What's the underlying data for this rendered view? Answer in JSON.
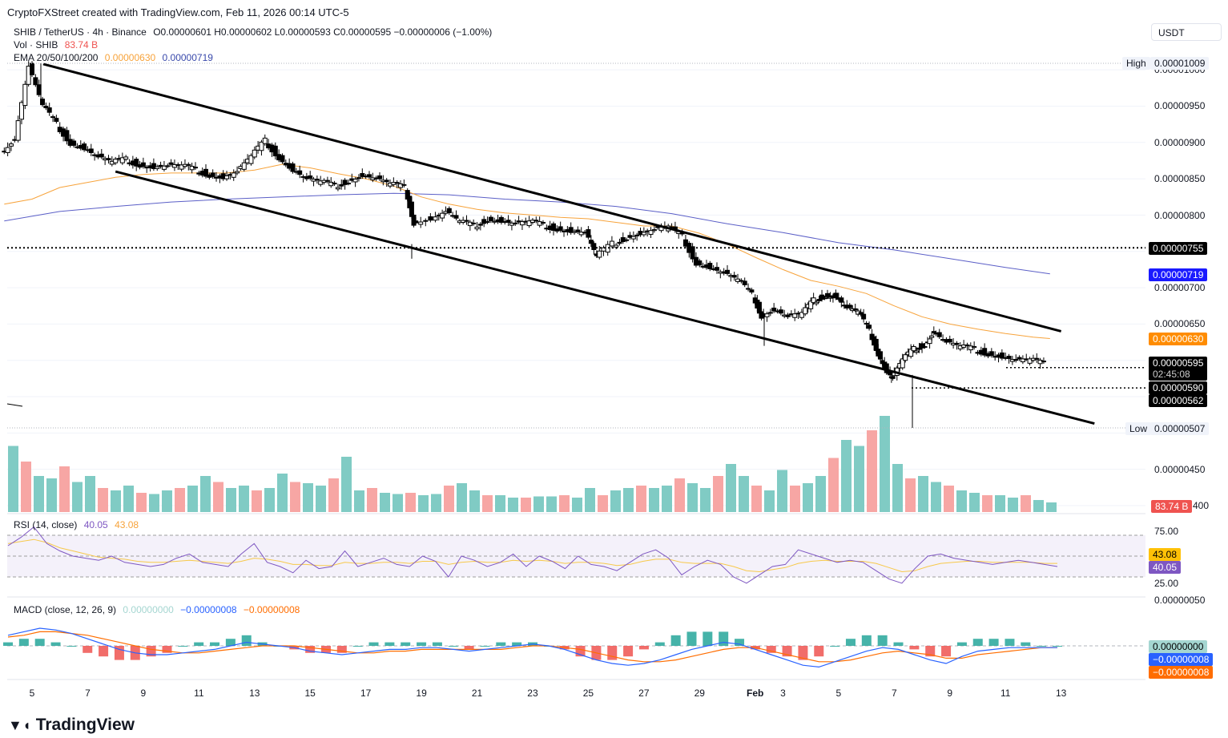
{
  "header": {
    "credit": "CryptoFXStreet created with TradingView.com, Feb 11, 2026 00:14 UTC-5"
  },
  "currency_button": "USDT",
  "legend": {
    "symbol": "SHIB / TetherUS · 4h · Binance",
    "ohlc": "O0.00000601 H0.00000602 L0.00000593 C0.00000595 −0.00000006 (−1.00%)",
    "vol_label": "Vol · SHIB",
    "vol_value": "83.74 B",
    "ema_label": "EMA 20/50/100/200",
    "ema_val1": "0.00000630",
    "ema_val2": "0.00000719"
  },
  "price_tags": {
    "high_label": "High",
    "high_value": "0.00001009",
    "low_label": "Low",
    "low_value": "0.00000507",
    "level_755": "0.00000755",
    "ema200": "0.00000719",
    "ema50": "0.00000630",
    "close": "0.00000595",
    "countdown": "02:45:08",
    "level_590": "0.00000590",
    "level_562": "0.00000562",
    "volume": "83.74 B"
  },
  "rsi": {
    "label": "RSI (14, close)",
    "value": "40.05",
    "ma": "43.08"
  },
  "macd": {
    "label": "MACD (close, 12, 26, 9)",
    "hist": "0.00000000",
    "macd": "−0.00000008",
    "signal": "−0.00000008"
  },
  "colors": {
    "up": "#26a69a",
    "down": "#ef5350",
    "ema50": "#f7a33b",
    "ema200": "#5b5fc7",
    "rsi": "#7e57c2",
    "macd": "#2962ff",
    "signal": "#ff6d00"
  },
  "logo": "TradingView",
  "chart_data": {
    "type": "candlestick",
    "x_ticks": [
      "5",
      "7",
      "9",
      "11",
      "13",
      "15",
      "17",
      "19",
      "21",
      "23",
      "25",
      "27",
      "29",
      "Feb",
      "3",
      "5",
      "7",
      "9",
      "11",
      "13"
    ],
    "y_ticks": [
      "0.00001000",
      "0.00000950",
      "0.00000900",
      "0.00000850",
      "0.00000800",
      "0.00000700",
      "0.00000650",
      "0.00000450",
      "400"
    ],
    "rsi_ticks": [
      "75.00",
      "25.00"
    ],
    "macd_ticks": [
      "0.00000050"
    ],
    "price_path": [
      [
        4.0,
        885
      ],
      [
        4.5,
        905
      ],
      [
        5.0,
        1005
      ],
      [
        5.5,
        950
      ],
      [
        6.0,
        925
      ],
      [
        6.5,
        900
      ],
      [
        7.0,
        892
      ],
      [
        7.5,
        880
      ],
      [
        8.0,
        872
      ],
      [
        8.5,
        876
      ],
      [
        9.0,
        870
      ],
      [
        9.5,
        866
      ],
      [
        10.0,
        868
      ],
      [
        10.5,
        867
      ],
      [
        11.0,
        862
      ],
      [
        11.5,
        856
      ],
      [
        12.0,
        852
      ],
      [
        12.5,
        860
      ],
      [
        13.0,
        880
      ],
      [
        13.5,
        902
      ],
      [
        14.0,
        880
      ],
      [
        14.5,
        862
      ],
      [
        15.0,
        850
      ],
      [
        15.5,
        845
      ],
      [
        16.0,
        840
      ],
      [
        16.5,
        848
      ],
      [
        17.0,
        855
      ],
      [
        17.5,
        850
      ],
      [
        18.0,
        842
      ],
      [
        18.5,
        838
      ],
      [
        18.8,
        790
      ],
      [
        19.5,
        795
      ],
      [
        20.0,
        805
      ],
      [
        20.5,
        790
      ],
      [
        21.0,
        785
      ],
      [
        21.5,
        795
      ],
      [
        22.0,
        792
      ],
      [
        22.5,
        788
      ],
      [
        23.0,
        790
      ],
      [
        23.5,
        786
      ],
      [
        24.0,
        782
      ],
      [
        24.5,
        778
      ],
      [
        25.0,
        776
      ],
      [
        25.4,
        742
      ],
      [
        26.0,
        760
      ],
      [
        26.5,
        770
      ],
      [
        27.0,
        775
      ],
      [
        27.5,
        780
      ],
      [
        28.0,
        783
      ],
      [
        28.5,
        770
      ],
      [
        29.0,
        735
      ],
      [
        29.5,
        728
      ],
      [
        30.0,
        720
      ],
      [
        30.5,
        710
      ],
      [
        31.0,
        690
      ],
      [
        31.3,
        662
      ],
      [
        31.8,
        670
      ],
      [
        32.3,
        660
      ],
      [
        32.8,
        664
      ],
      [
        33.2,
        682
      ],
      [
        33.6,
        690
      ],
      [
        34.0,
        688
      ],
      [
        34.4,
        672
      ],
      [
        34.8,
        666
      ],
      [
        35.2,
        640
      ],
      [
        35.5,
        610
      ],
      [
        35.8,
        585
      ],
      [
        36.0,
        575
      ],
      [
        36.4,
        600
      ],
      [
        36.8,
        615
      ],
      [
        37.2,
        623
      ],
      [
        37.5,
        640
      ],
      [
        38.0,
        625
      ],
      [
        38.5,
        618
      ],
      [
        39.0,
        615
      ],
      [
        39.5,
        610
      ],
      [
        40.0,
        605
      ],
      [
        40.5,
        600
      ],
      [
        41.0,
        600
      ],
      [
        41.5,
        595
      ]
    ],
    "ema50": [
      [
        4.0,
        815
      ],
      [
        5.0,
        822
      ],
      [
        6.0,
        838
      ],
      [
        7.0,
        845
      ],
      [
        8.0,
        852
      ],
      [
        9.0,
        856
      ],
      [
        10.0,
        858
      ],
      [
        11.0,
        858
      ],
      [
        12.0,
        858
      ],
      [
        13.0,
        862
      ],
      [
        14.0,
        870
      ],
      [
        15.0,
        865
      ],
      [
        16.0,
        857
      ],
      [
        17.0,
        850
      ],
      [
        18.0,
        840
      ],
      [
        19.0,
        825
      ],
      [
        20.0,
        815
      ],
      [
        21.0,
        808
      ],
      [
        22.0,
        803
      ],
      [
        23.0,
        800
      ],
      [
        24.0,
        797
      ],
      [
        25.0,
        795
      ],
      [
        26.0,
        790
      ],
      [
        27.0,
        785
      ],
      [
        28.0,
        785
      ],
      [
        29.0,
        775
      ],
      [
        30.0,
        760
      ],
      [
        31.0,
        742
      ],
      [
        32.0,
        725
      ],
      [
        33.0,
        710
      ],
      [
        34.0,
        702
      ],
      [
        35.0,
        692
      ],
      [
        36.0,
        675
      ],
      [
        37.0,
        660
      ],
      [
        38.0,
        650
      ],
      [
        39.0,
        643
      ],
      [
        40.0,
        637
      ],
      [
        41.0,
        632
      ],
      [
        41.6,
        630
      ]
    ],
    "ema200": [
      [
        4.0,
        792
      ],
      [
        6.0,
        805
      ],
      [
        8.0,
        812
      ],
      [
        10.0,
        818
      ],
      [
        12.0,
        822
      ],
      [
        14.0,
        825
      ],
      [
        16.0,
        828
      ],
      [
        18.0,
        830
      ],
      [
        20.0,
        828
      ],
      [
        22.0,
        822
      ],
      [
        24.0,
        818
      ],
      [
        26.0,
        812
      ],
      [
        28.0,
        802
      ],
      [
        30.0,
        788
      ],
      [
        32.0,
        776
      ],
      [
        34.0,
        762
      ],
      [
        36.0,
        752
      ],
      [
        38.0,
        740
      ],
      [
        40.0,
        728
      ],
      [
        41.6,
        719
      ]
    ],
    "channel_upper": [
      [
        5.4,
        1008
      ],
      [
        42.0,
        640
      ]
    ],
    "channel_lower": [
      [
        8.0,
        860
      ],
      [
        43.2,
        513
      ]
    ],
    "dotted_levels": [
      755,
      590,
      562
    ],
    "high": 1009,
    "low": 507,
    "volume_bars": [
      0.55,
      0.42,
      0.3,
      0.28,
      0.38,
      0.25,
      0.3,
      0.2,
      0.18,
      0.22,
      0.16,
      0.15,
      0.18,
      0.2,
      0.22,
      0.3,
      0.25,
      0.2,
      0.22,
      0.18,
      0.2,
      0.32,
      0.25,
      0.24,
      0.22,
      0.28,
      0.46,
      0.18,
      0.2,
      0.16,
      0.15,
      0.16,
      0.14,
      0.15,
      0.22,
      0.24,
      0.18,
      0.14,
      0.14,
      0.12,
      0.12,
      0.13,
      0.13,
      0.14,
      0.12,
      0.2,
      0.14,
      0.18,
      0.2,
      0.22,
      0.2,
      0.22,
      0.28,
      0.24,
      0.2,
      0.3,
      0.4,
      0.3,
      0.22,
      0.18,
      0.35,
      0.22,
      0.24,
      0.3,
      0.45,
      0.6,
      0.55,
      0.68,
      0.8,
      0.4,
      0.28,
      0.3,
      0.25,
      0.22,
      0.18,
      0.16,
      0.14,
      0.14,
      0.12,
      0.14,
      0.1,
      0.08
    ],
    "rsi": [
      60,
      68,
      78,
      62,
      55,
      50,
      48,
      46,
      50,
      44,
      42,
      40,
      42,
      48,
      52,
      44,
      42,
      40,
      52,
      62,
      44,
      40,
      34,
      46,
      38,
      40,
      55,
      40,
      44,
      48,
      42,
      40,
      50,
      45,
      30,
      50,
      46,
      40,
      44,
      52,
      40,
      50,
      45,
      38,
      50,
      42,
      40,
      36,
      44,
      52,
      56,
      48,
      32,
      40,
      46,
      42,
      30,
      24,
      32,
      40,
      42,
      56,
      52,
      48,
      44,
      46,
      44,
      36,
      28,
      24,
      38,
      50,
      52,
      48,
      46,
      44,
      42,
      44,
      46,
      44,
      42,
      40
    ],
    "rsi_ma": [
      62,
      64,
      66,
      63,
      58,
      55,
      52,
      49,
      48,
      47,
      45,
      44,
      44,
      45,
      46,
      45,
      44,
      43,
      45,
      48,
      47,
      45,
      42,
      42,
      41,
      41,
      44,
      43,
      43,
      44,
      44,
      43,
      45,
      45,
      42,
      44,
      45,
      44,
      44,
      46,
      45,
      46,
      45,
      43,
      44,
      44,
      43,
      41,
      42,
      45,
      47,
      47,
      44,
      43,
      43,
      43,
      40,
      36,
      35,
      37,
      39,
      43,
      45,
      46,
      45,
      45,
      45,
      43,
      39,
      35,
      36,
      40,
      43,
      44,
      45,
      45,
      44,
      44,
      44,
      44,
      43,
      43
    ],
    "macd": [
      0.6,
      0.8,
      1.0,
      0.9,
      0.7,
      0.4,
      0.1,
      -0.2,
      -0.4,
      -0.5,
      -0.5,
      -0.4,
      -0.3,
      -0.2,
      0.0,
      0.2,
      0.1,
      0.0,
      -0.1,
      -0.3,
      -0.4,
      -0.5,
      -0.4,
      -0.3,
      -0.2,
      -0.2,
      -0.1,
      -0.1,
      -0.2,
      -0.3,
      -0.2,
      -0.1,
      0.0,
      0.1,
      0.0,
      -0.2,
      -0.5,
      -0.8,
      -1.0,
      -1.1,
      -1.0,
      -0.8,
      -0.5,
      -0.2,
      0.0,
      0.2,
      0.1,
      -0.2,
      -0.5,
      -0.8,
      -1.1,
      -1.2,
      -0.9,
      -0.6,
      -0.3,
      -0.1,
      -0.2,
      -0.5,
      -0.8,
      -1.0,
      -0.6,
      -0.3,
      -0.2,
      -0.1,
      -0.1,
      -0.1,
      -0.1
    ],
    "macd_signal": [
      0.5,
      0.6,
      0.8,
      0.8,
      0.7,
      0.6,
      0.4,
      0.2,
      0.0,
      -0.2,
      -0.3,
      -0.4,
      -0.4,
      -0.3,
      -0.2,
      -0.1,
      0.0,
      0.0,
      0.0,
      -0.1,
      -0.2,
      -0.3,
      -0.4,
      -0.4,
      -0.3,
      -0.3,
      -0.2,
      -0.2,
      -0.2,
      -0.2,
      -0.2,
      -0.2,
      -0.1,
      0.0,
      0.0,
      -0.1,
      -0.2,
      -0.4,
      -0.6,
      -0.8,
      -0.9,
      -0.9,
      -0.8,
      -0.6,
      -0.4,
      -0.2,
      -0.1,
      -0.1,
      -0.3,
      -0.5,
      -0.7,
      -0.9,
      -0.9,
      -0.8,
      -0.6,
      -0.4,
      -0.3,
      -0.4,
      -0.5,
      -0.7,
      -0.7,
      -0.5,
      -0.4,
      -0.3,
      -0.2,
      -0.1,
      -0.1
    ]
  }
}
